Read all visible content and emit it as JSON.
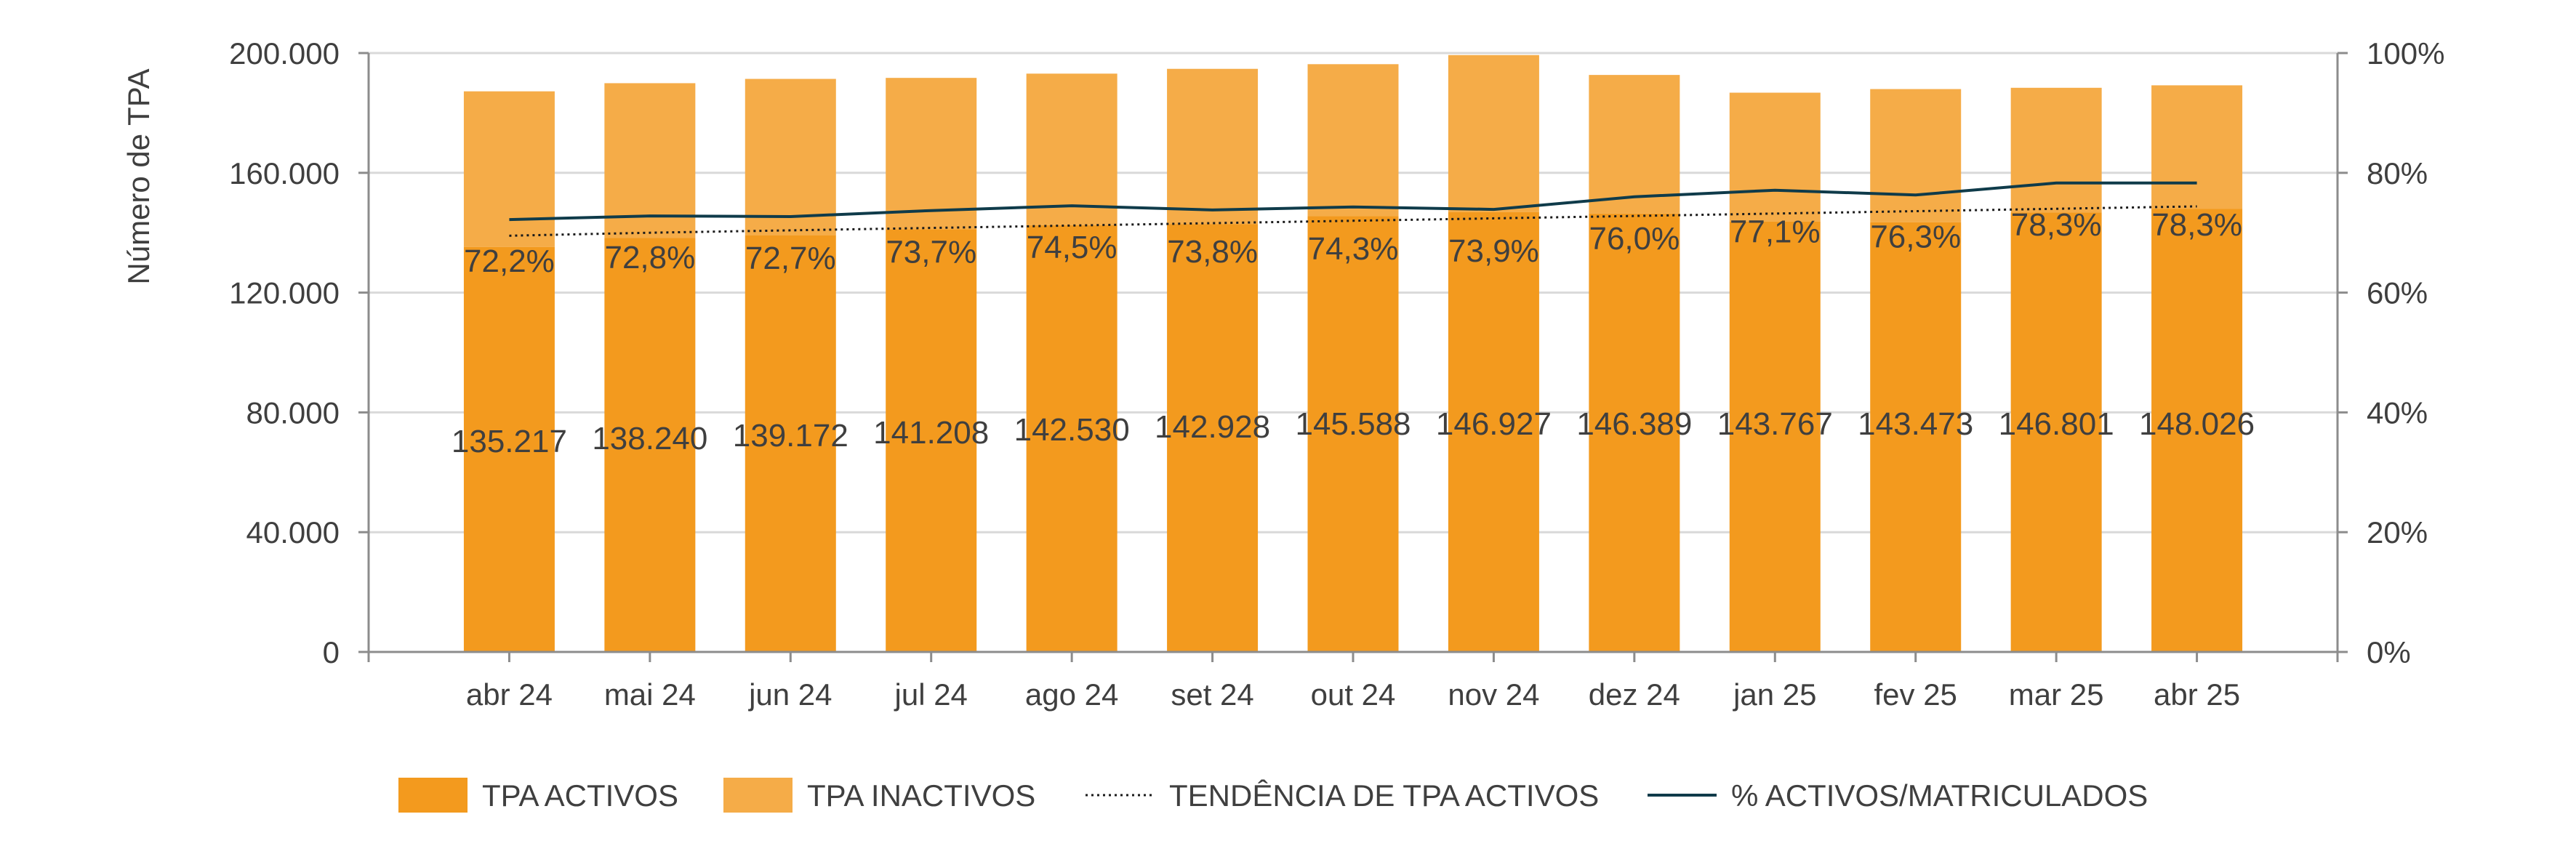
{
  "chart_data": {
    "type": "bar",
    "stacked": true,
    "categories": [
      "abr 24",
      "mai 24",
      "jun 24",
      "jul 24",
      "ago 24",
      "set 24",
      "out 24",
      "nov 24",
      "dez 24",
      "jan 25",
      "fev 25",
      "mar 25",
      "abr 25"
    ],
    "ylabel": "Número de TPA",
    "ylim": [
      0,
      200000
    ],
    "y_ticks": [
      "0",
      "40.000",
      "80.000",
      "120.000",
      "160.000",
      "200.000"
    ],
    "y2lim": [
      0,
      100
    ],
    "y2_ticks": [
      "0%",
      "20%",
      "40%",
      "60%",
      "80%",
      "100%"
    ],
    "grid": true,
    "legend_position": "bottom",
    "series": [
      {
        "name": "TPA ACTIVOS",
        "kind": "bar",
        "color": "#F39A1E",
        "values": [
          135217,
          138240,
          139172,
          141208,
          142530,
          142928,
          145588,
          146927,
          146389,
          143767,
          143473,
          146801,
          148026
        ],
        "labels": [
          "135.217",
          "138.240",
          "139.172",
          "141.208",
          "142.530",
          "142.928",
          "145.588",
          "146.927",
          "146.389",
          "143.767",
          "143.473",
          "146.801",
          "148.026"
        ]
      },
      {
        "name": "TPA INACTIVOS",
        "kind": "bar",
        "color": "#F5AC48",
        "values": [
          52000,
          51700,
          52200,
          50500,
          50600,
          51800,
          50700,
          52400,
          46300,
          43000,
          44500,
          41600,
          41200
        ]
      },
      {
        "name": "TENDÊNCIA DE TPA ACTIVOS",
        "kind": "line",
        "style": "dotted",
        "color": "#1a1a1a",
        "axis": "right",
        "values": [
          69.5,
          70.0,
          70.4,
          70.8,
          71.2,
          71.6,
          72.0,
          72.4,
          72.8,
          73.2,
          73.6,
          74.0,
          74.4
        ]
      },
      {
        "name": "% ACTIVOS/MATRICULADOS",
        "kind": "line",
        "style": "solid",
        "color": "#0F3B4A",
        "axis": "right",
        "values": [
          72.2,
          72.8,
          72.7,
          73.7,
          74.5,
          73.8,
          74.3,
          73.9,
          76.0,
          77.1,
          76.3,
          78.3,
          78.3
        ],
        "labels": [
          "72,2%",
          "72,8%",
          "72,7%",
          "73,7%",
          "74,5%",
          "73,8%",
          "74,3%",
          "73,9%",
          "76,0%",
          "77,1%",
          "76,3%",
          "78,3%",
          "78,3%"
        ]
      }
    ],
    "colors": {
      "grid": "#D9D9D9",
      "axis": "#8C8C8C",
      "text": "#3F3F3F"
    }
  }
}
